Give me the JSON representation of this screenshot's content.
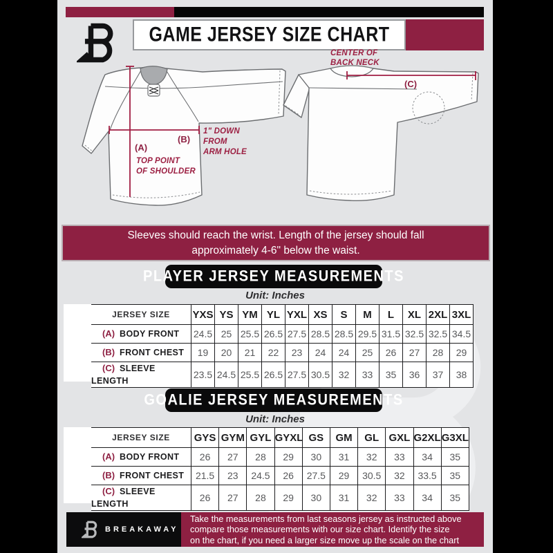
{
  "header": {
    "title": "GAME JERSEY SIZE CHART"
  },
  "icons": {
    "brand_logo": "breakaway-b-logo"
  },
  "colors": {
    "maroon": "#8e2042",
    "annotation": "#a01d42",
    "black": "#0a0a0b",
    "background": "#e3e4e6"
  },
  "diagram": {
    "front": {
      "label_a": "(A)",
      "a_line1": "TOP POINT",
      "a_line2": "OF SHOULDER",
      "label_b": "(B)",
      "b_line1": "1\" DOWN",
      "b_line2": "FROM",
      "b_line3": "ARM HOLE"
    },
    "back": {
      "label_c": "(C)",
      "c_line1": "CENTER OF",
      "c_line2": "BACK NECK"
    }
  },
  "notice": {
    "line1": "Sleeves should reach the wrist. Length of the jersey should fall",
    "line2": "approximately 4-6\" below the waist."
  },
  "player": {
    "title": "PLAYER JERSEY MEASUREMENTS",
    "unit": "Unit: Inches",
    "table": {
      "header_label": "JERSEY SIZE",
      "sizes": [
        "YXS",
        "YS",
        "YM",
        "YL",
        "YXL",
        "XS",
        "S",
        "M",
        "L",
        "XL",
        "2XL",
        "3XL"
      ],
      "rows": [
        {
          "key": "(A)",
          "label": "BODY FRONT",
          "values": [
            "24.5",
            "25",
            "25.5",
            "26.5",
            "27.5",
            "28.5",
            "28.5",
            "29.5",
            "31.5",
            "32.5",
            "32.5",
            "34.5"
          ]
        },
        {
          "key": "(B)",
          "label": "FRONT CHEST",
          "values": [
            "19",
            "20",
            "21",
            "22",
            "23",
            "24",
            "24",
            "25",
            "26",
            "27",
            "28",
            "29"
          ]
        },
        {
          "key": "(C)",
          "label": "SLEEVE LENGTH",
          "values": [
            "23.5",
            "24.5",
            "25.5",
            "26.5",
            "27.5",
            "30.5",
            "32",
            "33",
            "35",
            "36",
            "37",
            "38"
          ]
        }
      ]
    }
  },
  "goalie": {
    "title": "GOALIE JERSEY MEASUREMENTS",
    "unit": "Unit: Inches",
    "table": {
      "header_label": "JERSEY SIZE",
      "sizes": [
        "GYS",
        "GYM",
        "GYL",
        "GYXL",
        "GS",
        "GM",
        "GL",
        "GXL",
        "G2XL",
        "G3XL"
      ],
      "rows": [
        {
          "key": "(A)",
          "label": "BODY FRONT",
          "values": [
            "26",
            "27",
            "28",
            "29",
            "30",
            "31",
            "32",
            "33",
            "34",
            "35"
          ]
        },
        {
          "key": "(B)",
          "label": "FRONT CHEST",
          "values": [
            "21.5",
            "23",
            "24.5",
            "26",
            "27.5",
            "29",
            "30.5",
            "32",
            "33.5",
            "35"
          ]
        },
        {
          "key": "(C)",
          "label": "SLEEVE LENGTH",
          "values": [
            "26",
            "27",
            "28",
            "29",
            "30",
            "31",
            "32",
            "33",
            "34",
            "35"
          ]
        }
      ]
    }
  },
  "footer": {
    "brand": "BREAKAWAY",
    "line1": "Take the measurements from last seasons jersey as instructed above",
    "line2": "compare those measurements  with our size chart. Identify the size",
    "line3": "on the chart, if you need a larger size move up the scale on the chart"
  }
}
